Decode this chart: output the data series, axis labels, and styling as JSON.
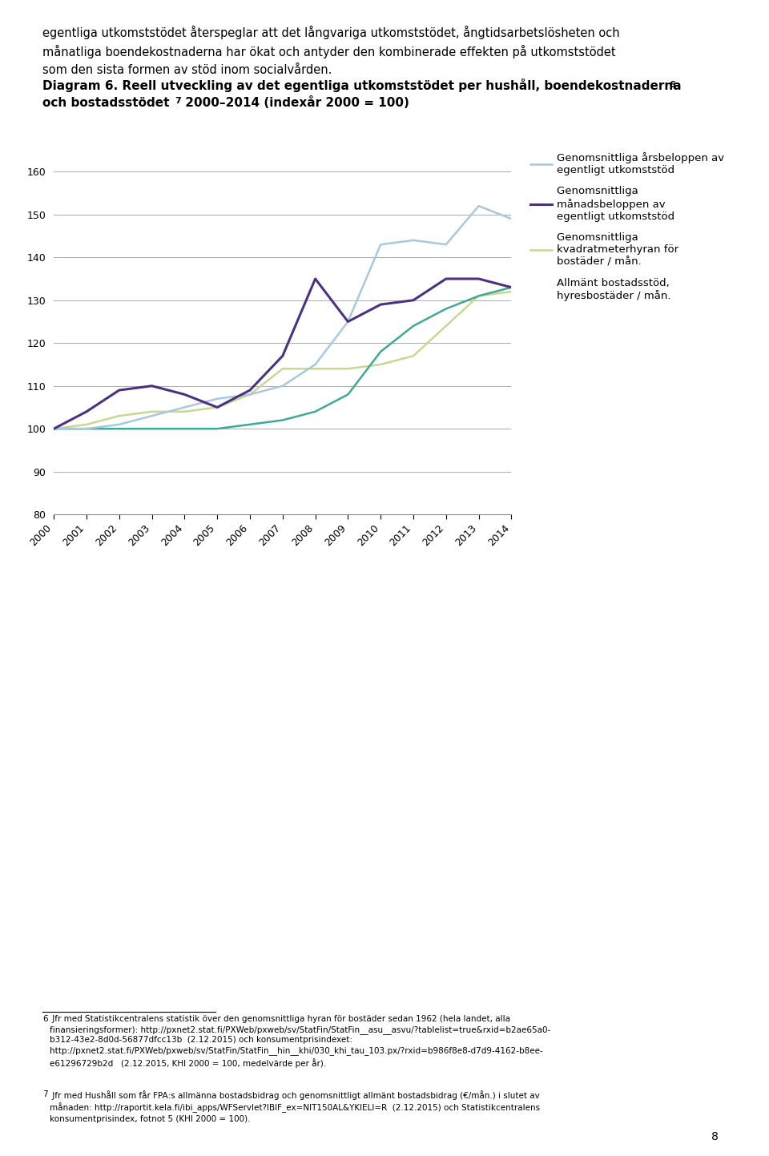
{
  "years": [
    2000,
    2001,
    2002,
    2003,
    2004,
    2005,
    2006,
    2007,
    2008,
    2009,
    2010,
    2011,
    2012,
    2013,
    2014
  ],
  "series1_annual": [
    100,
    100,
    101,
    103,
    105,
    107,
    108,
    110,
    115,
    125,
    143,
    144,
    143,
    152,
    149
  ],
  "series2_monthly": [
    100,
    104,
    109,
    110,
    108,
    105,
    109,
    117,
    135,
    125,
    129,
    130,
    135,
    135,
    133
  ],
  "series3_sqm": [
    100,
    101,
    103,
    104,
    104,
    105,
    108,
    114,
    114,
    114,
    115,
    117,
    124,
    131,
    132
  ],
  "series4_housing": [
    100,
    100,
    100,
    100,
    100,
    100,
    101,
    102,
    104,
    108,
    118,
    124,
    128,
    131,
    133
  ],
  "color1": "#a8c8e0",
  "color2": "#4b3280",
  "color3": "#c8d890",
  "color4": "#40a898",
  "ylim": [
    80,
    165
  ],
  "yticks": [
    80,
    90,
    100,
    110,
    120,
    130,
    140,
    150,
    160
  ],
  "legend_labels": [
    "Genomsnittliga årsbeloppen av \negentligt utkomststöd",
    "Genomsnittliga \nmånadsbeloppen av \negentligt utkomststöd",
    "Genomsnittliga \nkvadratmeterhyran för \nbostäder / mån.",
    "Allmänt bostadsstöd,\nhyresbostäder / mån."
  ],
  "background_color": "#ffffff",
  "grid_color": "#aaaaaa",
  "intro_text": "egentliga utkomststödet återspeglar att det långvariga utkomststödet, ångtidsarbetslösheten och\nmånatliga boendekostnaderna har ökat och antyder den kombinerade effekten på utkomststödet\nsom den sista formen av stöd inom socialvården.",
  "title_line1": "Diagram 6. Reell utveckling av det egentliga utkomststödet per hushåll, boendekostnaderna",
  "title_sup1": "6",
  "title_line2": "och bostadsstödet",
  "title_sup2": "7",
  "title_line2_rest": " 2000–2014 (indexår 2000 = 100)",
  "footnote1_superscript": "6",
  "footnote1_text": " Jfr med Statistikcentralens statistik över den genomsnittliga hyran för bostäder sedan 1962 (hela landet, alla\nfinansieringsformer): http://pxnet2.stat.fi/PXWeb/pxweb/sv/StatFin/StatFin__asu__asvu/?tablelist=true&rxid=b2ae65a0-\nb312-43e2-8d0d-56877dfcc13b  (2.12.2015) och konsumentprisindexet:\nhttp://pxnet2.stat.fi/PXWeb/pxweb/sv/StatFin/StatFin__hin__khi/030_khi_tau_103.px/?rxid=b986f8e8-d7d9-4162-b8ee-\ne61296729b2d   (2.12.2015, KHI 2000 = 100, medelvärde per år).",
  "footnote2_superscript": "7",
  "footnote2_text": " Jfr med Hushåll som får FPA:s allmänna bostadsbidrag och genomsnittligt allmänt bostadsbidrag (€/mån.) i slutet av\nmånaden: http://raportit.kela.fi/ibi_apps/WFServlet?IBIF_ex=NIT150AL&YKIELI=R  (2.12.2015) och Statistikcentralens\nkonsumentprisindex, fotnot 5 (KHI 2000 = 100).",
  "page_number": "8"
}
